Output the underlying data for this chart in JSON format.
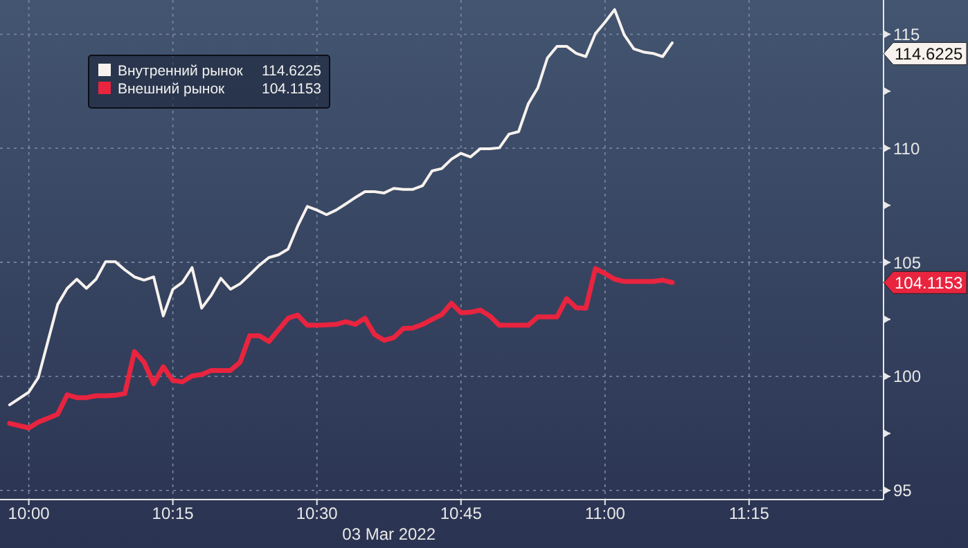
{
  "chart_data": {
    "type": "line",
    "xlabel": "03 Mar 2022",
    "x": [
      "2022-03-03T09:58",
      "2022-03-03T10:00",
      "2022-03-03T10:01",
      "2022-03-03T10:03",
      "2022-03-03T10:04",
      "2022-03-03T10:05",
      "2022-03-03T10:06",
      "2022-03-03T10:07",
      "2022-03-03T10:08",
      "2022-03-03T10:09",
      "2022-03-03T10:10",
      "2022-03-03T10:11",
      "2022-03-03T10:12",
      "2022-03-03T10:13",
      "2022-03-03T10:14",
      "2022-03-03T10:15",
      "2022-03-03T10:16",
      "2022-03-03T10:17",
      "2022-03-03T10:18",
      "2022-03-03T10:19",
      "2022-03-03T10:20",
      "2022-03-03T10:21",
      "2022-03-03T10:22",
      "2022-03-03T10:23",
      "2022-03-03T10:24",
      "2022-03-03T10:25",
      "2022-03-03T10:26",
      "2022-03-03T10:27",
      "2022-03-03T10:28",
      "2022-03-03T10:29",
      "2022-03-03T10:30",
      "2022-03-03T10:31",
      "2022-03-03T10:32",
      "2022-03-03T10:33",
      "2022-03-03T10:34",
      "2022-03-03T10:35",
      "2022-03-03T10:36",
      "2022-03-03T10:37",
      "2022-03-03T10:38",
      "2022-03-03T10:39",
      "2022-03-03T10:40",
      "2022-03-03T10:41",
      "2022-03-03T10:42",
      "2022-03-03T10:43",
      "2022-03-03T10:44",
      "2022-03-03T10:45",
      "2022-03-03T10:46",
      "2022-03-03T10:47",
      "2022-03-03T10:48",
      "2022-03-03T10:49",
      "2022-03-03T10:50",
      "2022-03-03T10:51",
      "2022-03-03T10:52",
      "2022-03-03T10:53",
      "2022-03-03T10:54",
      "2022-03-03T10:55",
      "2022-03-03T10:56",
      "2022-03-03T10:57",
      "2022-03-03T10:58",
      "2022-03-03T10:59",
      "2022-03-03T11:00",
      "2022-03-03T11:01",
      "2022-03-03T11:02",
      "2022-03-03T11:03",
      "2022-03-03T11:04",
      "2022-03-03T11:05",
      "2022-03-03T11:06",
      "2022-03-03T11:07"
    ],
    "series": [
      {
        "name": "Внутренний рынок",
        "color": "#f7f2ee",
        "values": [
          98.75,
          99.31,
          99.96,
          103.15,
          103.86,
          104.26,
          103.86,
          104.26,
          105.03,
          105.03,
          104.67,
          104.36,
          104.22,
          104.36,
          102.65,
          103.82,
          104.12,
          104.77,
          102.99,
          103.56,
          104.3,
          103.82,
          104.06,
          104.46,
          104.87,
          105.21,
          105.33,
          105.58,
          106.59,
          107.45,
          107.29,
          107.09,
          107.29,
          107.56,
          107.84,
          108.1,
          108.1,
          108.04,
          108.24,
          108.2,
          108.2,
          108.36,
          109.01,
          109.11,
          109.52,
          109.78,
          109.62,
          109.98,
          109.98,
          110.02,
          110.62,
          110.73,
          111.94,
          112.65,
          113.96,
          114.47,
          114.47,
          114.16,
          114.02,
          115.03,
          115.53,
          116.08,
          114.97,
          114.36,
          114.22,
          114.16,
          114.02,
          114.6225
        ]
      },
      {
        "name": "Внешний рынок",
        "color": "#e8243f",
        "values": [
          97.94,
          97.74,
          98.0,
          98.34,
          99.19,
          99.07,
          99.07,
          99.15,
          99.15,
          99.17,
          99.25,
          101.09,
          100.62,
          99.68,
          100.42,
          99.82,
          99.76,
          100.02,
          100.08,
          100.26,
          100.26,
          100.26,
          100.62,
          101.78,
          101.78,
          101.53,
          102.04,
          102.55,
          102.69,
          102.24,
          102.24,
          102.26,
          102.28,
          102.4,
          102.28,
          102.55,
          101.84,
          101.58,
          101.7,
          102.1,
          102.12,
          102.28,
          102.5,
          102.71,
          103.21,
          102.79,
          102.81,
          102.91,
          102.65,
          102.24,
          102.24,
          102.24,
          102.24,
          102.61,
          102.61,
          102.61,
          103.41,
          103.01,
          102.99,
          104.73,
          104.51,
          104.26,
          104.16,
          104.16,
          104.16,
          104.16,
          104.22,
          104.1153
        ]
      }
    ],
    "xlim": [
      "2022-03-03T09:57",
      "2022-03-03T11:29"
    ],
    "xticks": [
      {
        "value": "2022-03-03T10:00",
        "label": "10:00"
      },
      {
        "value": "2022-03-03T10:15",
        "label": "10:15"
      },
      {
        "value": "2022-03-03T10:30",
        "label": "10:30"
      },
      {
        "value": "2022-03-03T10:45",
        "label": "10:45"
      },
      {
        "value": "2022-03-03T11:00",
        "label": "11:00"
      },
      {
        "value": "2022-03-03T11:15",
        "label": "11:15"
      }
    ],
    "ylim": [
      94.6,
      116.5
    ],
    "yticks": [
      95,
      {
        "value": 97.5,
        "label": null
      },
      100,
      {
        "value": 102.5,
        "label": null
      },
      105,
      {
        "value": 107.5,
        "label": null
      },
      110,
      {
        "value": 112.5,
        "label": null
      },
      115
    ],
    "annotations": [
      "114.6225",
      "104.1153"
    ],
    "grid": true,
    "legend": "top left",
    "line_style": "solid",
    "marker": "none"
  }
}
